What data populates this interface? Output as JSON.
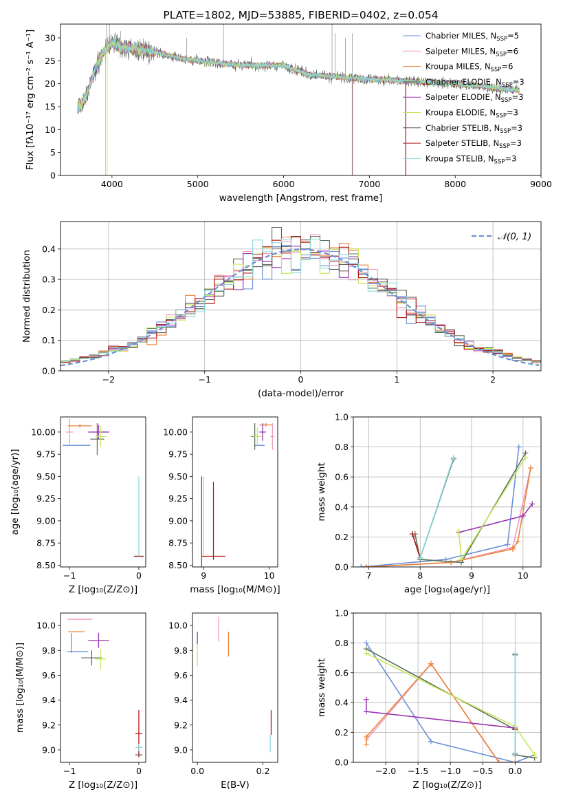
{
  "colors": {
    "cm": "#6a8fd8",
    "sm": "#f09ac0",
    "km": "#e98236",
    "ce": "#5b7057",
    "se": "#9a34b0",
    "ke": "#c6e85a",
    "cs": "#555555",
    "ss": "#b21a1a",
    "ks": "#8ad8dc",
    "grid": "#b0b0b0",
    "gauss": "#6a8fd8"
  },
  "chart_data": [
    {
      "type": "line",
      "id": "spectrum",
      "title": "PLATE=1802, MJD=53885, FIBERID=0402, z=0.054",
      "xlabel": "wavelength [Angstrom, rest frame]",
      "ylabel": "Flux [fλ10⁻¹⁷ erg cm⁻² s⁻¹ A⁻¹]",
      "xlim": [
        3400,
        9000
      ],
      "ylim": [
        0,
        33
      ],
      "xticks": [
        "4000",
        "5000",
        "6000",
        "7000",
        "8000",
        "9000"
      ],
      "yticks": [
        "0",
        "5",
        "10",
        "15",
        "20",
        "25",
        "30"
      ],
      "grid": false,
      "legend_position": "top-right",
      "legend": [
        {
          "key": "cm",
          "label": "Chabrier MILES, N",
          "sub": "SSP",
          "tail": "=5"
        },
        {
          "key": "sm",
          "label": "Salpeter MILES, N",
          "sub": "SSP",
          "tail": "=6"
        },
        {
          "key": "km",
          "label": "Kroupa MILES, N",
          "sub": "SSP",
          "tail": "=6"
        },
        {
          "key": "ce",
          "label": "Chabrier ELODIE, N",
          "sub": "SSP",
          "tail": "=3"
        },
        {
          "key": "se",
          "label": "Salpeter ELODIE, N",
          "sub": "SSP",
          "tail": "=3"
        },
        {
          "key": "ke",
          "label": "Kroupa ELODIE, N",
          "sub": "SSP",
          "tail": "=3"
        },
        {
          "key": "cs",
          "label": "Chabrier STELIB, N",
          "sub": "SSP",
          "tail": "=3"
        },
        {
          "key": "ss",
          "label": "Salpeter STELIB, N",
          "sub": "SSP",
          "tail": "=3"
        },
        {
          "key": "ks",
          "label": "Kroupa STELIB, N",
          "sub": "SSP",
          "tail": "=3"
        }
      ],
      "continuum": [
        [
          3600,
          14.5
        ],
        [
          3700,
          17
        ],
        [
          3800,
          23
        ],
        [
          3900,
          27
        ],
        [
          4000,
          29
        ],
        [
          4100,
          28
        ],
        [
          4300,
          27.5
        ],
        [
          4500,
          27
        ],
        [
          4800,
          25.5
        ],
        [
          5000,
          25
        ],
        [
          5500,
          24
        ],
        [
          6000,
          24
        ],
        [
          6300,
          22
        ],
        [
          6600,
          21.5
        ],
        [
          7000,
          21
        ],
        [
          7500,
          20.5
        ],
        [
          8000,
          20
        ],
        [
          8500,
          19
        ],
        [
          8750,
          18.5
        ]
      ],
      "spikes": [
        [
          3935,
          33
        ],
        [
          3970,
          33
        ],
        [
          4100,
          31.5
        ],
        [
          4870,
          30
        ],
        [
          5300,
          33
        ],
        [
          6565,
          33
        ],
        [
          6600,
          31
        ],
        [
          6720,
          30
        ],
        [
          6800,
          31
        ]
      ]
    },
    {
      "type": "line",
      "id": "residuals",
      "xlabel": "(data-model)/error",
      "ylabel": "Normed distribution",
      "xlim": [
        -2.5,
        2.5
      ],
      "ylim": [
        0,
        0.49
      ],
      "xticks": [
        -2,
        -1,
        0,
        1,
        2
      ],
      "yticks": [
        0.0,
        0.1,
        0.2,
        0.3,
        0.4
      ],
      "grid": true,
      "legend_position": "top-right",
      "gauss_label": "𝒩(0, 1)",
      "bin_width": 0.1
    },
    {
      "type": "scatter",
      "id": "age_vs_z",
      "xlabel": "Z [log₁₀(Z/Z⊙)]",
      "ylabel": "age  [log₁₀(age/yr)]",
      "xlim": [
        -1.13,
        0.1
      ],
      "ylim": [
        8.48,
        10.17
      ],
      "xticks": [
        -1,
        0
      ],
      "yticks": [
        8.5,
        8.75,
        9.0,
        9.25,
        9.5,
        9.75,
        10.0
      ],
      "errorbars": [
        {
          "key": "cm",
          "x": -0.9,
          "y": 9.85,
          "xerr": 0.2,
          "yerr": 0.0
        },
        {
          "key": "sm",
          "x": -1.0,
          "y": 10.0,
          "xerr": 0.05,
          "yerr": 0.15
        },
        {
          "key": "km",
          "x": -0.85,
          "y": 10.07,
          "xerr": 0.17,
          "yerr": 0.02
        },
        {
          "key": "ce",
          "x": -0.6,
          "y": 9.92,
          "xerr": 0.1,
          "yerr": 0.18
        },
        {
          "key": "se",
          "x": -0.58,
          "y": 10.0,
          "xerr": 0.15,
          "yerr": 0.08
        },
        {
          "key": "ke",
          "x": -0.55,
          "y": 9.95,
          "xerr": 0.08,
          "yerr": 0.12
        },
        {
          "key": "cs",
          "x": 0.0,
          "y": 8.6,
          "xerr": 0.07,
          "yerr": 0.0
        },
        {
          "key": "ss",
          "x": 0.0,
          "y": 8.6,
          "xerr": 0.0,
          "yerr": 0.0
        },
        {
          "key": "ks",
          "x": 0.0,
          "y": 9.05,
          "xerr": 0.0,
          "yerr": 0.45
        }
      ]
    },
    {
      "type": "scatter",
      "id": "age_vs_mass",
      "xlabel": "mass [log₁₀(M/M⊙)]",
      "xlim": [
        8.83,
        10.13
      ],
      "ylim": [
        8.48,
        10.17
      ],
      "xticks": [
        9,
        10
      ],
      "yticks": [
        8.5,
        8.75,
        9.0,
        9.25,
        9.5,
        9.75,
        10.0
      ],
      "errorbars": [
        {
          "key": "cm",
          "x": 9.85,
          "y": 9.85,
          "xerr": 0.08,
          "yerr": 0.0
        },
        {
          "key": "sm",
          "x": 10.05,
          "y": 9.95,
          "xerr": 0.03,
          "yerr": 0.15
        },
        {
          "key": "km",
          "x": 9.95,
          "y": 10.08,
          "xerr": 0.1,
          "yerr": 0.02
        },
        {
          "key": "ce",
          "x": 9.78,
          "y": 9.95,
          "xerr": 0.05,
          "yerr": 0.15
        },
        {
          "key": "se",
          "x": 9.9,
          "y": 10.0,
          "xerr": 0.05,
          "yerr": 0.1
        },
        {
          "key": "ke",
          "x": 9.82,
          "y": 9.95,
          "xerr": 0.06,
          "yerr": 0.1
        },
        {
          "key": "cs",
          "x": 8.97,
          "y": 8.6,
          "xerr": 0.0,
          "yerr": 0.9
        },
        {
          "key": "ss",
          "x": 9.15,
          "y": 9.0,
          "xerr": 0.0,
          "yerr": 0.44
        },
        {
          "key": "ks",
          "x": 9.0,
          "y": 9.05,
          "xerr": 0.0,
          "yerr": 0.45
        },
        {
          "key": "ss",
          "x": 9.15,
          "y": 8.6,
          "xerr": 0.18,
          "yerr": 0.0
        }
      ]
    },
    {
      "type": "line",
      "id": "weight_vs_age",
      "xlabel": "age  [log₁₀(age/yr)]",
      "ylabel": "mass weight",
      "xlim": [
        6.7,
        10.35
      ],
      "ylim": [
        0,
        1.0
      ],
      "xticks": [
        7,
        8,
        9,
        10
      ],
      "yticks": [
        0.0,
        0.2,
        0.4,
        0.6,
        0.8,
        1.0
      ],
      "grid": true,
      "series": [
        {
          "key": "cm",
          "x": [
            6.85,
            8.5,
            9.7,
            9.92
          ],
          "y": [
            0.0,
            0.05,
            0.15,
            0.8
          ]
        },
        {
          "key": "sm",
          "x": [
            6.95,
            8.6,
            9.8,
            10.15
          ],
          "y": [
            0.0,
            0.03,
            0.13,
            0.66
          ]
        },
        {
          "key": "km",
          "x": [
            6.95,
            8.6,
            9.8,
            9.9,
            10.15
          ],
          "y": [
            0.0,
            0.03,
            0.12,
            0.17,
            0.66
          ]
        },
        {
          "key": "ce",
          "x": [
            7.9,
            8.0,
            8.8,
            10.05
          ],
          "y": [
            0.22,
            0.05,
            0.03,
            0.76
          ]
        },
        {
          "key": "se",
          "x": [
            8.75,
            10.0,
            10.18
          ],
          "y": [
            0.23,
            0.34,
            0.42
          ]
        },
        {
          "key": "ke",
          "x": [
            8.75,
            8.8,
            10.05
          ],
          "y": [
            0.24,
            0.05,
            0.73
          ]
        },
        {
          "key": "cs",
          "x": [
            7.85,
            8.0,
            8.65
          ],
          "y": [
            0.22,
            0.06,
            0.72
          ]
        },
        {
          "key": "ss",
          "x": [
            7.85,
            8.0
          ],
          "y": [
            0.22,
            0.06
          ]
        },
        {
          "key": "ks",
          "x": [
            8.0,
            8.65
          ],
          "y": [
            0.06,
            0.73
          ]
        }
      ]
    },
    {
      "type": "scatter",
      "id": "mass_vs_z",
      "xlabel": "Z [log₁₀(Z/Z⊙)]",
      "ylabel": "mass [log₁₀(M/M⊙)]",
      "xlim": [
        -1.13,
        0.1
      ],
      "ylim": [
        8.9,
        10.1
      ],
      "xticks": [
        -1,
        0
      ],
      "yticks": [
        9.0,
        9.2,
        9.4,
        9.6,
        9.8,
        10.0
      ],
      "errorbars": [
        {
          "key": "cm",
          "x": -0.88,
          "y": 9.79,
          "xerr": 0.15,
          "yerr": 0.0
        },
        {
          "key": "sm",
          "x": -0.85,
          "y": 10.05,
          "xerr": 0.18,
          "yerr": 0.0
        },
        {
          "key": "km",
          "x": -0.9,
          "y": 9.95,
          "xerr": 0.12,
          "yerr": 0.0
        },
        {
          "key": "cm",
          "x": -0.97,
          "y": 9.86,
          "xerr": 0.0,
          "yerr": 0.08
        },
        {
          "key": "ce",
          "x": -0.68,
          "y": 9.74,
          "xerr": 0.15,
          "yerr": 0.06
        },
        {
          "key": "se",
          "x": -0.58,
          "y": 9.88,
          "xerr": 0.15,
          "yerr": 0.06
        },
        {
          "key": "ke",
          "x": -0.55,
          "y": 9.73,
          "xerr": 0.08,
          "yerr": 0.08
        },
        {
          "key": "ss",
          "x": 0.0,
          "y": 9.13,
          "xerr": 0.05,
          "yerr": 0.19
        },
        {
          "key": "ks",
          "x": 0.0,
          "y": 9.02,
          "xerr": 0.05,
          "yerr": 0.03
        },
        {
          "key": "cs",
          "x": 0.0,
          "y": 8.96,
          "xerr": 0.05,
          "yerr": 0.0
        }
      ]
    },
    {
      "type": "scatter",
      "id": "mass_vs_ebv",
      "xlabel": "E(B-V)",
      "xlim": [
        -0.015,
        0.245
      ],
      "ylim": [
        8.9,
        10.1
      ],
      "xticks": [
        "0.0",
        "0.2"
      ],
      "yticks": [
        9.0,
        9.2,
        9.4,
        9.6,
        9.8,
        10.0
      ],
      "errorbars": [
        {
          "key": "ke",
          "x": 0.0,
          "y": 9.76,
          "xerr": 0.0,
          "yerr": 0.09
        },
        {
          "key": "se",
          "x": 0.0,
          "y": 9.9,
          "xerr": 0.0,
          "yerr": 0.05
        },
        {
          "key": "sm",
          "x": 0.065,
          "y": 9.97,
          "xerr": 0.0,
          "yerr": 0.1
        },
        {
          "key": "km",
          "x": 0.095,
          "y": 9.85,
          "xerr": 0.0,
          "yerr": 0.1
        },
        {
          "key": "ss",
          "x": 0.225,
          "y": 9.22,
          "xerr": 0.0,
          "yerr": 0.1
        },
        {
          "key": "ks",
          "x": 0.222,
          "y": 9.05,
          "xerr": 0.0,
          "yerr": 0.07
        }
      ]
    },
    {
      "type": "line",
      "id": "weight_vs_z",
      "xlabel": "Z [log₁₀(Z/Z⊙)]",
      "ylabel": "mass weight",
      "xlim": [
        -2.5,
        0.4
      ],
      "ylim": [
        0,
        1.0
      ],
      "xticks": [
        "−2.0",
        "−1.5",
        "−1.0",
        "−0.5",
        "0.0"
      ],
      "xtick_values": [
        -2.0,
        -1.5,
        -1.0,
        -0.5,
        0.0
      ],
      "yticks": [
        0.0,
        0.2,
        0.4,
        0.6,
        0.8,
        1.0
      ],
      "grid": true,
      "series": [
        {
          "key": "cm",
          "x": [
            -2.3,
            -1.3,
            0.0,
            0.3
          ],
          "y": [
            0.8,
            0.14,
            0.0,
            0.05
          ]
        },
        {
          "key": "sm",
          "x": [
            -2.3,
            -1.3,
            -0.25,
            0.0
          ],
          "y": [
            0.15,
            0.66,
            0.0,
            0.0
          ]
        },
        {
          "key": "km",
          "x": [
            -2.3,
            -2.3,
            -1.3,
            -0.25,
            0.0
          ],
          "y": [
            0.12,
            0.17,
            0.66,
            0.0,
            0.0
          ]
        },
        {
          "key": "ce",
          "x": [
            -2.3,
            0.0,
            0.0,
            0.3
          ],
          "y": [
            0.76,
            0.22,
            0.05,
            0.03
          ]
        },
        {
          "key": "se",
          "x": [
            -2.3,
            -2.3,
            0.0
          ],
          "y": [
            0.42,
            0.34,
            0.23
          ]
        },
        {
          "key": "ke",
          "x": [
            -2.3,
            0.0,
            0.3
          ],
          "y": [
            0.73,
            0.24,
            0.05
          ]
        },
        {
          "key": "cs",
          "x": [
            0.0,
            0.0
          ],
          "y": [
            0.72,
            0.06
          ]
        },
        {
          "key": "ss",
          "x": [
            0.0,
            0.0
          ],
          "y": [
            0.22,
            0.06
          ]
        },
        {
          "key": "ks",
          "x": [
            0.0,
            0.0
          ],
          "y": [
            0.73,
            0.06
          ]
        }
      ]
    }
  ]
}
